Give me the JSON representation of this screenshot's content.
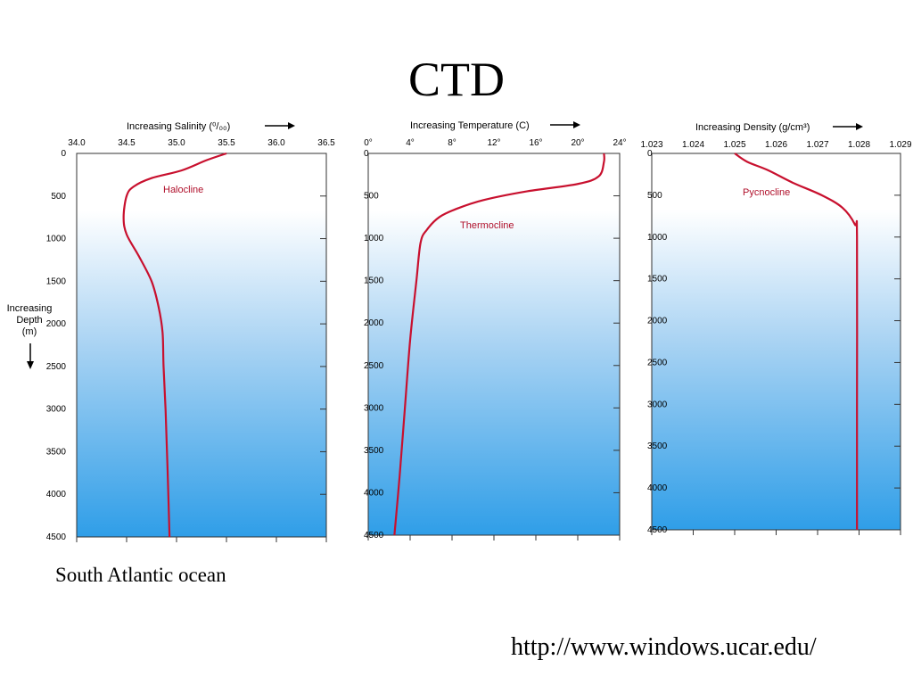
{
  "slide": {
    "title": "CTD",
    "caption": "South Atlantic ocean",
    "source_url": "http://www.windows.ucar.edu/"
  },
  "colors": {
    "curve": "#c8102e",
    "label": "#b0102b",
    "water_top": "#ffffff",
    "water_mid": "#a9d3f3",
    "water_bottom": "#2f9ee8"
  },
  "depth_axis_label": [
    "Increasing",
    "Depth",
    "(m)"
  ],
  "chart_data": [
    {
      "type": "line",
      "title": "Increasing Salinity (⁰/₀₀)",
      "xlabel": "Increasing Salinity (⁰/₀₀)",
      "ylabel": "Increasing Depth (m)",
      "x_tick_labels": [
        "34.0",
        "34.5",
        "35.0",
        "35.5",
        "36.0",
        "36.5"
      ],
      "x_ticks": [
        34.0,
        34.5,
        35.0,
        35.5,
        36.0,
        36.5
      ],
      "y_tick_labels": [
        "0",
        "500",
        "1000",
        "1500",
        "2000",
        "2500",
        "3000",
        "3500",
        "4000",
        "4500"
      ],
      "y_ticks": [
        0,
        500,
        1000,
        1500,
        2000,
        2500,
        3000,
        3500,
        4000,
        4500
      ],
      "xlim": [
        34.0,
        36.5
      ],
      "ylim": [
        0,
        4500
      ],
      "y_inverted": true,
      "annotation": "Halocline",
      "series": [
        {
          "x": [
            35.5,
            35.3,
            35.05,
            34.75,
            34.57,
            34.5,
            34.47,
            34.5,
            34.62,
            34.75,
            34.82,
            34.86,
            34.87,
            34.89,
            34.91,
            34.93
          ],
          "y": [
            0,
            80,
            200,
            290,
            390,
            500,
            750,
            950,
            1200,
            1500,
            1800,
            2100,
            2500,
            3000,
            3700,
            4500
          ]
        }
      ]
    },
    {
      "type": "line",
      "title": "Increasing Temperature (C)",
      "xlabel": "Increasing Temperature (C)",
      "x_tick_labels": [
        "0°",
        "4°",
        "8°",
        "12°",
        "16°",
        "20°",
        "24°"
      ],
      "x_ticks": [
        0,
        4,
        8,
        12,
        16,
        20,
        24
      ],
      "y_tick_labels": [
        "0",
        "500",
        "1000",
        "1500",
        "2000",
        "2500",
        "3000",
        "3500",
        "4000",
        "4500"
      ],
      "y_ticks": [
        0,
        500,
        1000,
        1500,
        2000,
        2500,
        3000,
        3500,
        4000,
        4500
      ],
      "xlim": [
        0,
        24
      ],
      "ylim": [
        0,
        4500
      ],
      "y_inverted": true,
      "annotation": "Thermocline",
      "series": [
        {
          "x": [
            22.5,
            22.5,
            22.0,
            20.0,
            15.0,
            11.0,
            8.5,
            6.8,
            5.6,
            5.0,
            4.6,
            4.0,
            3.5,
            3.0,
            2.5
          ],
          "y": [
            0,
            100,
            270,
            360,
            450,
            550,
            650,
            750,
            900,
            1050,
            1500,
            2200,
            3000,
            3800,
            4500
          ]
        }
      ]
    },
    {
      "type": "line",
      "title": "Increasing Density (g/cm³)",
      "xlabel": "Increasing Density (g/cm³)",
      "x_tick_labels": [
        "1.023",
        "1.024",
        "1.025",
        "1.026",
        "1.027",
        "1.028",
        "1.029"
      ],
      "x_ticks": [
        1.023,
        1.024,
        1.025,
        1.026,
        1.027,
        1.028,
        1.029
      ],
      "y_tick_labels": [
        "0",
        "500",
        "1000",
        "1500",
        "2000",
        "2500",
        "3000",
        "3500",
        "4000",
        "4500"
      ],
      "y_ticks": [
        0,
        500,
        1000,
        1500,
        2000,
        2500,
        3000,
        3500,
        4000,
        4500
      ],
      "xlim": [
        1.023,
        1.029
      ],
      "ylim": [
        0,
        4500
      ],
      "y_inverted": true,
      "annotation": "Pycnocline",
      "series": [
        {
          "x": [
            1.025,
            1.0253,
            1.0258,
            1.0264,
            1.0271,
            1.0276,
            1.0279,
            1.02795,
            1.02795,
            1.02795
          ],
          "y": [
            0,
            100,
            200,
            350,
            500,
            650,
            850,
            1000,
            3000,
            4500
          ]
        }
      ]
    }
  ]
}
